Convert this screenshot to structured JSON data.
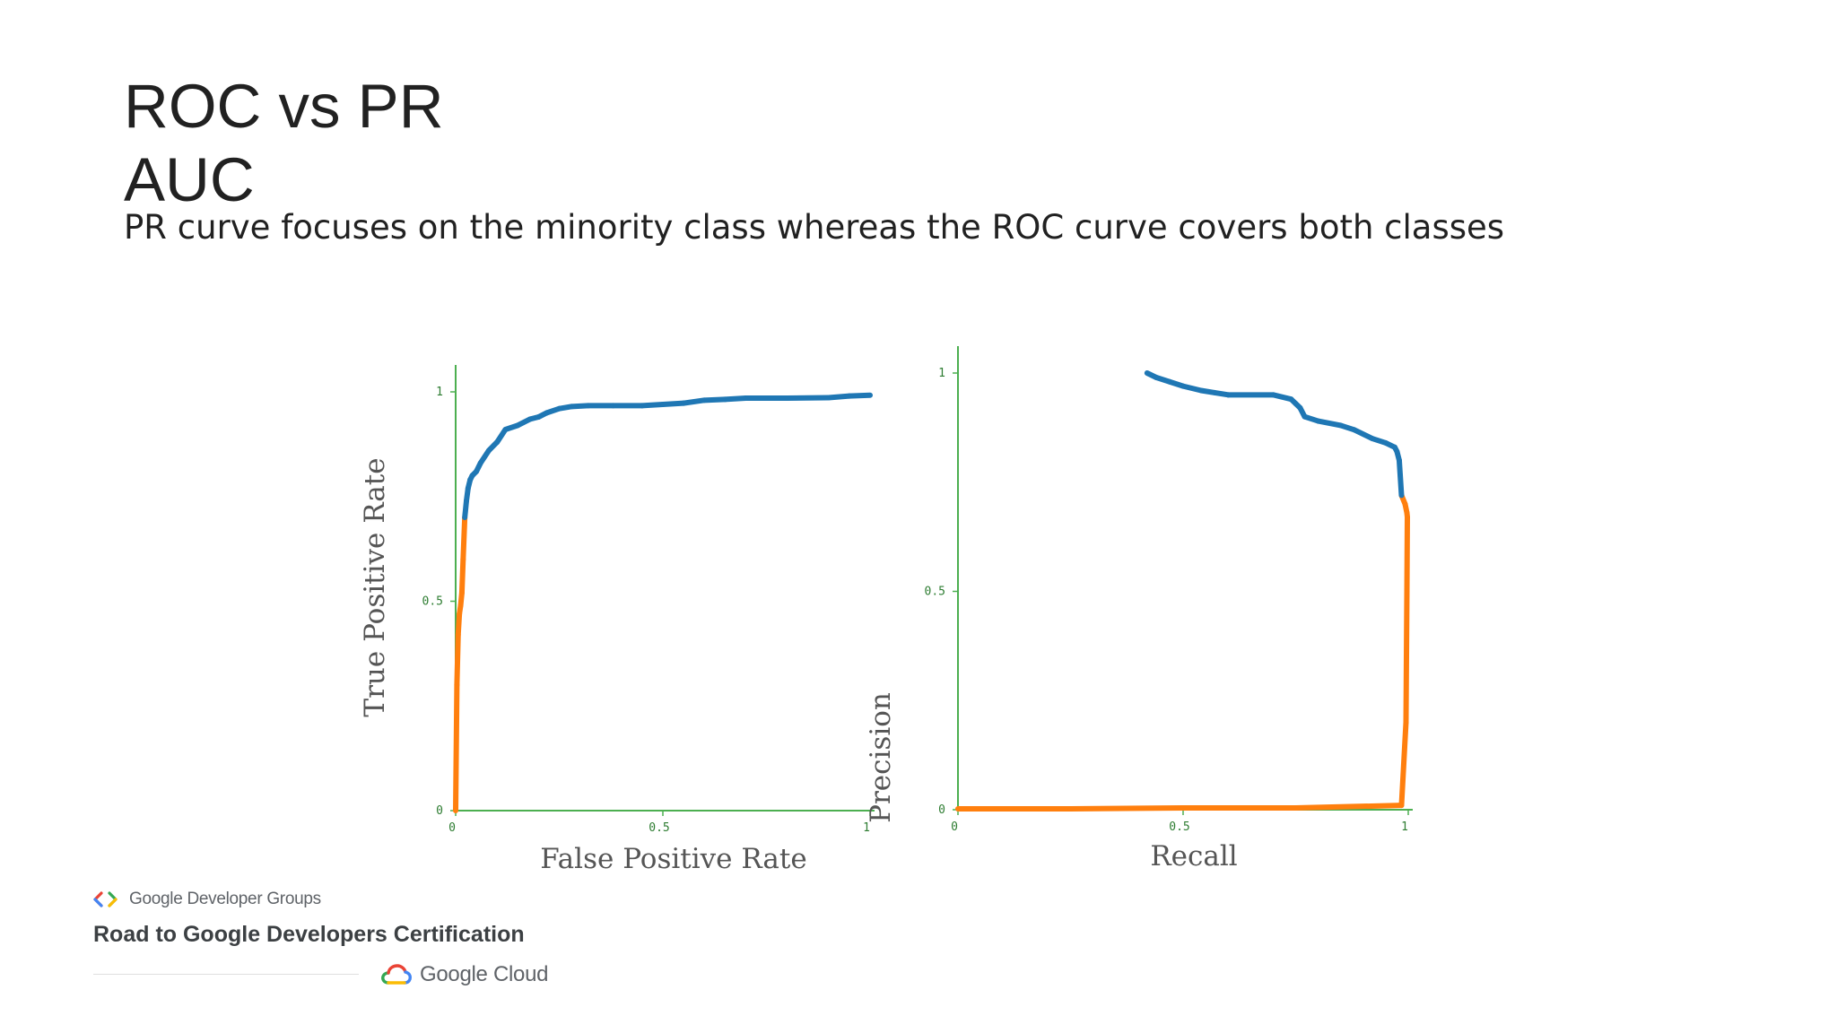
{
  "slide": {
    "title_line1": "ROC vs PR",
    "title_line2": "AUC",
    "subtitle": "PR curve focuses on the minority class whereas the ROC curve covers both classes"
  },
  "footer": {
    "gdg_label": "Google Developer Groups",
    "program_label": "Road to Google Developers Certification",
    "cloud_label": "Google Cloud",
    "gdg_icon": "gdg-chevrons-icon",
    "cloud_icon": "google-cloud-icon"
  },
  "colors": {
    "axis": "#4caf50",
    "curve_high": "#1f77b4",
    "curve_low": "#ff7f0e",
    "tick_text": "#2e7d32",
    "axis_title": "#555555"
  },
  "chart_data": [
    {
      "type": "line",
      "xlabel": "False Positive Rate",
      "ylabel": "True Positive Rate",
      "xlim": [
        0,
        1
      ],
      "ylim": [
        0,
        1
      ],
      "xticks": [
        "0",
        "0.5",
        "1"
      ],
      "yticks": [
        "0",
        "0.5",
        "1"
      ],
      "grid": false,
      "x": [
        0,
        0.003,
        0.006,
        0.009,
        0.012,
        0.015,
        0.018,
        0.022,
        0.026,
        0.03,
        0.035,
        0.04,
        0.05,
        0.06,
        0.08,
        0.1,
        0.12,
        0.15,
        0.18,
        0.2,
        0.22,
        0.25,
        0.28,
        0.32,
        0.38,
        0.45,
        0.5,
        0.55,
        0.6,
        0.65,
        0.7,
        0.8,
        0.9,
        0.95,
        1.0
      ],
      "y": [
        0,
        0.3,
        0.42,
        0.47,
        0.49,
        0.52,
        0.6,
        0.7,
        0.74,
        0.77,
        0.79,
        0.8,
        0.81,
        0.83,
        0.86,
        0.88,
        0.91,
        0.92,
        0.935,
        0.94,
        0.95,
        0.96,
        0.965,
        0.967,
        0.967,
        0.967,
        0.97,
        0.973,
        0.98,
        0.982,
        0.985,
        0.985,
        0.986,
        0.99,
        0.992
      ]
    },
    {
      "type": "line",
      "xlabel": "Recall",
      "ylabel": "Precision",
      "xlim": [
        0,
        1
      ],
      "ylim": [
        0,
        1
      ],
      "xticks": [
        "0",
        "0.5",
        "1"
      ],
      "yticks": [
        "0",
        "0.5",
        "1"
      ],
      "grid": false,
      "x": [
        0,
        0.25,
        0.5,
        0.75,
        0.985,
        0.995,
        0.997,
        0.998,
        0.997,
        0.993,
        0.985,
        0.98,
        0.975,
        0.97,
        0.95,
        0.92,
        0.88,
        0.85,
        0.8,
        0.77,
        0.76,
        0.75,
        0.74,
        0.7,
        0.6,
        0.57,
        0.54,
        0.5,
        0.47,
        0.44,
        0.42
      ],
      "y": [
        0.002,
        0.002,
        0.004,
        0.004,
        0.01,
        0.2,
        0.5,
        0.67,
        0.68,
        0.7,
        0.72,
        0.8,
        0.82,
        0.83,
        0.84,
        0.85,
        0.87,
        0.88,
        0.89,
        0.9,
        0.92,
        0.93,
        0.94,
        0.95,
        0.95,
        0.955,
        0.96,
        0.97,
        0.98,
        0.99,
        1.0
      ]
    }
  ]
}
